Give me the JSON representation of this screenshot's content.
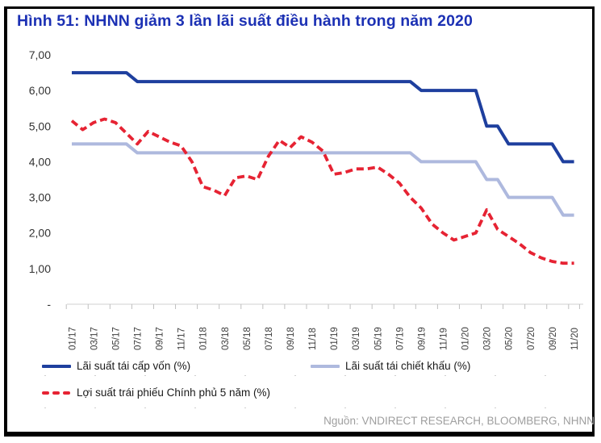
{
  "header": {
    "title": "Hình 51: NHNN giảm 3 lần lãi suất điều hành trong năm 2020"
  },
  "footer": {
    "source": "Nguồn: VNDIRECT RESEARCH, BLOOMBERG, NHNN"
  },
  "colors": {
    "title": "#1C31B4",
    "axis_label": "#333333",
    "x_label": "#404040",
    "axis_line": "#D9D9D9",
    "tick": "#BFBFBF",
    "source": "#9E9E9E",
    "frame_border": "#000000"
  },
  "chart_data": {
    "type": "line",
    "title": "",
    "ylim": [
      0,
      7
    ],
    "grid": false,
    "legend_position": "bottom",
    "x": [
      "01/17",
      "02/17",
      "03/17",
      "04/17",
      "05/17",
      "06/17",
      "07/17",
      "08/17",
      "09/17",
      "10/17",
      "11/17",
      "12/17",
      "01/18",
      "02/18",
      "03/18",
      "04/18",
      "05/18",
      "06/18",
      "07/18",
      "08/18",
      "09/18",
      "10/18",
      "11/18",
      "12/18",
      "01/19",
      "02/19",
      "03/19",
      "04/19",
      "05/19",
      "06/19",
      "07/19",
      "08/19",
      "09/19",
      "10/19",
      "11/19",
      "12/19",
      "01/20",
      "02/20",
      "03/20",
      "04/20",
      "05/20",
      "06/20",
      "07/20",
      "08/20",
      "09/20",
      "10/20",
      "11/20"
    ],
    "x_tick_labels": [
      "01/17",
      "03/17",
      "05/17",
      "07/17",
      "09/17",
      "11/17",
      "01/18",
      "03/18",
      "05/18",
      "07/18",
      "09/18",
      "11/18",
      "01/19",
      "03/19",
      "05/19",
      "07/19",
      "09/19",
      "11/19",
      "01/20",
      "03/20",
      "05/20",
      "07/20",
      "09/20",
      "11/20"
    ],
    "y_tick_labels": [
      "7,00",
      "6,00",
      "5,00",
      "4,00",
      "3,00",
      "2,00",
      "1,00",
      "-"
    ],
    "series": [
      {
        "name": "Lãi suất tái cấp vốn (%)",
        "color": "#1E3F9E",
        "style": "solid",
        "values": [
          6.5,
          6.5,
          6.5,
          6.5,
          6.5,
          6.5,
          6.25,
          6.25,
          6.25,
          6.25,
          6.25,
          6.25,
          6.25,
          6.25,
          6.25,
          6.25,
          6.25,
          6.25,
          6.25,
          6.25,
          6.25,
          6.25,
          6.25,
          6.25,
          6.25,
          6.25,
          6.25,
          6.25,
          6.25,
          6.25,
          6.25,
          6.25,
          6.0,
          6.0,
          6.0,
          6.0,
          6.0,
          6.0,
          5.0,
          5.0,
          4.5,
          4.5,
          4.5,
          4.5,
          4.5,
          4.0,
          4.0
        ]
      },
      {
        "name": "Lãi suất tái chiết khấu (%)",
        "color": "#AEB9DE",
        "style": "solid",
        "values": [
          4.5,
          4.5,
          4.5,
          4.5,
          4.5,
          4.5,
          4.25,
          4.25,
          4.25,
          4.25,
          4.25,
          4.25,
          4.25,
          4.25,
          4.25,
          4.25,
          4.25,
          4.25,
          4.25,
          4.25,
          4.25,
          4.25,
          4.25,
          4.25,
          4.25,
          4.25,
          4.25,
          4.25,
          4.25,
          4.25,
          4.25,
          4.25,
          4.0,
          4.0,
          4.0,
          4.0,
          4.0,
          4.0,
          3.5,
          3.5,
          3.0,
          3.0,
          3.0,
          3.0,
          3.0,
          2.5,
          2.5
        ]
      },
      {
        "name": "Lợi suất trái phiếu Chính phủ 5 năm (%)",
        "color": "#E62333",
        "style": "dashed",
        "values": [
          5.15,
          4.9,
          5.1,
          5.2,
          5.1,
          4.8,
          4.5,
          4.85,
          4.7,
          4.55,
          4.45,
          4.0,
          3.3,
          3.2,
          3.05,
          3.55,
          3.6,
          3.5,
          4.15,
          4.6,
          4.4,
          4.7,
          4.55,
          4.3,
          3.65,
          3.7,
          3.8,
          3.8,
          3.85,
          3.65,
          3.4,
          3.0,
          2.7,
          2.25,
          2.0,
          1.8,
          1.9,
          2.0,
          2.65,
          2.1,
          1.9,
          1.7,
          1.45,
          1.3,
          1.2,
          1.15,
          1.15
        ]
      }
    ]
  }
}
